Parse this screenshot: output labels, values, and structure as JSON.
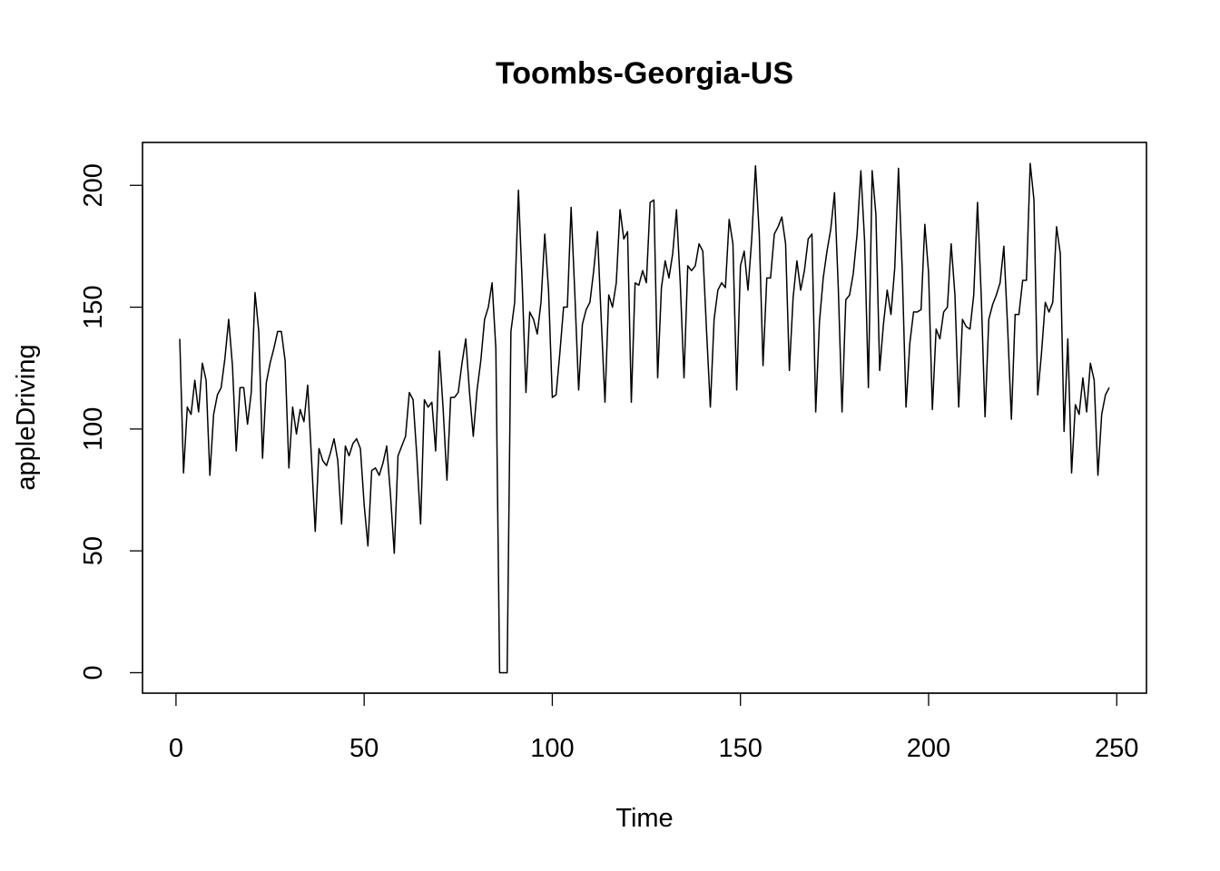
{
  "chart_data": {
    "type": "line",
    "title": "Toombs-Georgia-US",
    "xlabel": "Time",
    "ylabel": "appleDriving",
    "xlim": [
      -8.9,
      257.9
    ],
    "ylim": [
      -8.4,
      217.6
    ],
    "xticks": [
      0,
      50,
      100,
      150,
      200,
      250
    ],
    "yticks": [
      0,
      50,
      100,
      150,
      200
    ],
    "xtick_labels": [
      "0",
      "50",
      "100",
      "150",
      "200",
      "250"
    ],
    "ytick_labels": [
      "0",
      "50",
      "100",
      "150",
      "200"
    ],
    "grid": false,
    "legend": "none",
    "line_color": "#000000",
    "series": [
      {
        "x_start": 1,
        "values": [
          137,
          82,
          109,
          106,
          120,
          107,
          127,
          120,
          81,
          106,
          114,
          117,
          129,
          145,
          126,
          91,
          117,
          117,
          102,
          115,
          156,
          140,
          88,
          119,
          127,
          133,
          140,
          140,
          128,
          84,
          109,
          98,
          108,
          103,
          118,
          88,
          58,
          92,
          87,
          85,
          90,
          96,
          87,
          61,
          93,
          89,
          94,
          96,
          92,
          69,
          52,
          83,
          84,
          81,
          86,
          93,
          73,
          49,
          89,
          93,
          97,
          115,
          112,
          89,
          61,
          112,
          109,
          111,
          91,
          132,
          108,
          79,
          113,
          113,
          115,
          127,
          137,
          115,
          97,
          116,
          128,
          145,
          150,
          160,
          133,
          0,
          0,
          0,
          140,
          152,
          198,
          160,
          115,
          148,
          145,
          139,
          152,
          180,
          157,
          113,
          114,
          131,
          150,
          150,
          191,
          155,
          116,
          143,
          149,
          152,
          165,
          181,
          145,
          111,
          155,
          150,
          160,
          190,
          178,
          181,
          111,
          160,
          159,
          165,
          160,
          193,
          194,
          121,
          158,
          169,
          162,
          172,
          190,
          160,
          121,
          167,
          165,
          167,
          176,
          173,
          140,
          109,
          145,
          157,
          160,
          158,
          186,
          176,
          116,
          167,
          173,
          157,
          178,
          208,
          180,
          126,
          162,
          162,
          180,
          183,
          187,
          176,
          124,
          154,
          169,
          157,
          165,
          178,
          180,
          107,
          144,
          162,
          173,
          182,
          197,
          158,
          107,
          153,
          155,
          164,
          180,
          206,
          177,
          117,
          206,
          188,
          124,
          143,
          157,
          147,
          166,
          207,
          165,
          109,
          135,
          148,
          148,
          149,
          184,
          164,
          108,
          141,
          137,
          148,
          150,
          176,
          155,
          109,
          145,
          142,
          141,
          155,
          193,
          154,
          105,
          145,
          151,
          155,
          160,
          175,
          142,
          104,
          147,
          147,
          161,
          161,
          209,
          194,
          114,
          131,
          152,
          148,
          152,
          183,
          172,
          99,
          137,
          82,
          110,
          106,
          121,
          107,
          127,
          120,
          81,
          106,
          114,
          117
        ]
      }
    ]
  }
}
